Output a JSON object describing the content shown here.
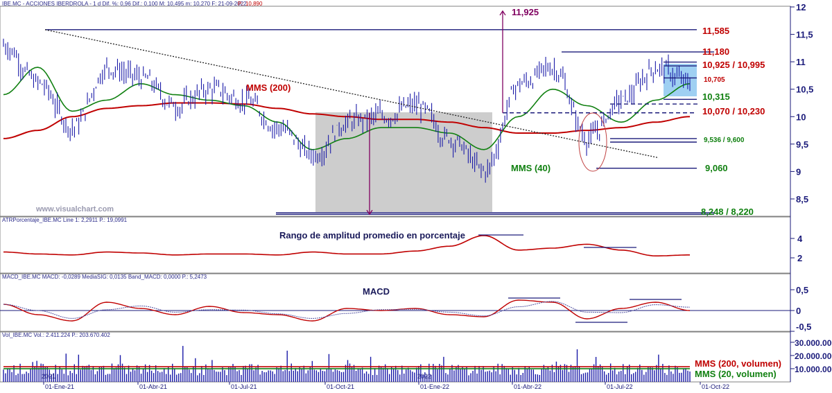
{
  "header": {
    "main": "IBE.MC - ACCIONES IBERDROLA - 1 d Dif. %: 0,96 Dif.: 0,100 M: 10,495 m: 10,270 F: 21-09-2022",
    "main_close": "P.: 10,890",
    "atr": "ATRPorcentaje_IBE.MC Line 1: 2,2911 P.: 19,0991",
    "macd": "MACD_IBE.MC MACD: -0,0289 MediaSIG: 0,0135 Band_MACD: 0,0000 P.: 5,2473",
    "vol": "Vol_IBE.MC Vol.: 2.411.224 P.: 203.670.402"
  },
  "watermark": "www.visualchart.com",
  "colors": {
    "price": "#1a1aa8",
    "mms200": "#c00000",
    "mms40": "#108010",
    "level_red": "#c00000",
    "level_green": "#108010",
    "level_navy": "#1a1a7a",
    "target_purple": "#800060",
    "box_gray": "#c8c8c8",
    "box_blue": "#8ec8f0",
    "macd_signal": "#5050a0"
  },
  "labels": {
    "mms200": "MMS (200)",
    "mms40": "MMS (40)",
    "atr_title": "Rango de amplitud promedio en porcentaje",
    "macd_title": "MACD",
    "vol_mms200": "MMS (200, volumen)",
    "vol_mms20": "MMS (20, volumen)"
  },
  "levels": [
    {
      "text": "11,925",
      "color": "#800060"
    },
    {
      "text": "11,585",
      "color": "#c00000"
    },
    {
      "text": "11,180",
      "color": "#c00000"
    },
    {
      "text": "10,925 / 10,995",
      "color": "#c00000"
    },
    {
      "text": "10,705",
      "color": "#c00000"
    },
    {
      "text": "10,315",
      "color": "#108010"
    },
    {
      "text": "10,070 / 10,230",
      "color": "#c00000"
    },
    {
      "text": "9,536 / 9,600",
      "color": "#108010"
    },
    {
      "text": "9,060",
      "color": "#108010"
    },
    {
      "text": "8,248 / 8,220",
      "color": "#108010"
    }
  ],
  "axes": {
    "price_ticks": [
      "12",
      "11,5",
      "11",
      "10,5",
      "10",
      "9,5",
      "9",
      "8,5"
    ],
    "atr_ticks": [
      "4",
      "2"
    ],
    "macd_ticks": [
      "0,5",
      "0",
      "-0,5"
    ],
    "vol_ticks": [
      "30.000.000",
      "20.000.000",
      "10.000.000"
    ],
    "dates": [
      "01-Ene-21",
      "01-Abr-21",
      "01-Jul-21",
      "01-Oct-21",
      "01-Ene-22",
      "01-Abr-22",
      "01-Jul-22",
      "01-Oct-22"
    ],
    "year_marks": [
      "2021",
      "2022"
    ]
  },
  "chart_data": {
    "type": "line",
    "price_ylim": [
      8.2,
      12.0
    ],
    "x": [
      "2021-01",
      "2021-02",
      "2021-03",
      "2021-04",
      "2021-05",
      "2021-06",
      "2021-07",
      "2021-08",
      "2021-09",
      "2021-10",
      "2021-11",
      "2021-12",
      "2022-01",
      "2022-02",
      "2022-03",
      "2022-04",
      "2022-05",
      "2022-06",
      "2022-07",
      "2022-08",
      "2022-09"
    ],
    "series": [
      {
        "name": "IBE.MC",
        "values": [
          11.3,
          10.6,
          9.8,
          10.9,
          10.7,
          10.2,
          10.5,
          10.3,
          9.8,
          9.3,
          9.9,
          10.0,
          10.2,
          9.6,
          9.0,
          10.6,
          10.9,
          9.6,
          10.3,
          10.9,
          10.6
        ]
      },
      {
        "name": "MMS (200)",
        "values": [
          9.6,
          9.75,
          10.0,
          10.15,
          10.2,
          10.25,
          10.25,
          10.23,
          10.15,
          10.05,
          10.0,
          9.95,
          9.95,
          9.9,
          9.8,
          9.7,
          9.7,
          9.75,
          9.8,
          9.9,
          10.0
        ]
      },
      {
        "name": "MMS (40)",
        "values": [
          10.4,
          10.9,
          10.1,
          10.3,
          10.6,
          10.4,
          10.3,
          10.2,
          9.9,
          9.4,
          9.6,
          9.8,
          9.8,
          9.7,
          9.4,
          10.0,
          10.5,
          10.2,
          9.9,
          10.3,
          10.6
        ]
      }
    ],
    "atr_values": [
      2.6,
      2.4,
      2.3,
      2.6,
      2.5,
      2.3,
      2.4,
      2.4,
      2.3,
      2.6,
      2.4,
      2.4,
      2.7,
      3.2,
      4.3,
      2.8,
      3.0,
      3.4,
      2.8,
      2.2,
      2.3
    ],
    "macd_values": [
      0.15,
      -0.1,
      -0.25,
      0.2,
      0.05,
      -0.1,
      0.1,
      -0.05,
      -0.1,
      -0.25,
      0.05,
      0.0,
      0.05,
      -0.1,
      -0.15,
      0.25,
      0.2,
      -0.2,
      0.05,
      0.2,
      0.0
    ],
    "macd_ylim": [
      -0.6,
      0.6
    ],
    "atr_ylim": [
      1,
      5
    ],
    "vol_ylim": [
      0,
      32000000
    ],
    "vol_mms200": 11500000,
    "vol_mms20": 10000000
  }
}
